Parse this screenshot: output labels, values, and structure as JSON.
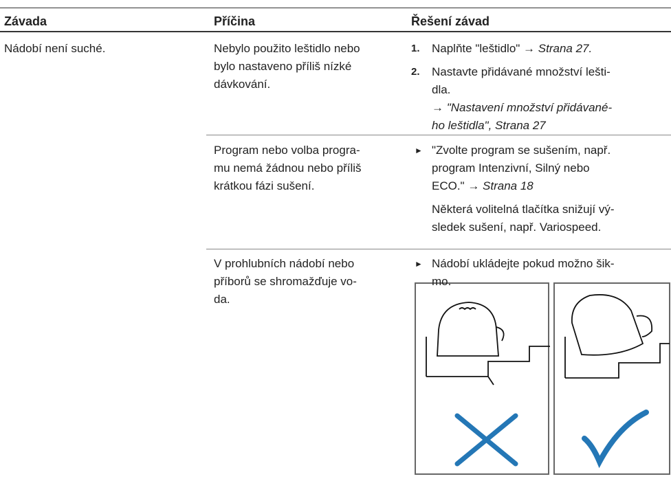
{
  "header": {
    "columns": [
      "Závada",
      "Příčina",
      "Řešení závad"
    ]
  },
  "rows": [
    {
      "fault": [
        "Nádobí není suché."
      ],
      "cause": [
        "Nebylo použito leštidlo nebo",
        "bylo nastaveno příliš nízké",
        "dávkování."
      ],
      "remedy": [
        {
          "number": "1.",
          "lines": [
            [
              {
                "text": "Naplňte \"leštidlo\" → "
              },
              {
                "text": "Strana 27.",
                "style": "italic"
              }
            ]
          ]
        },
        {
          "number": "2.",
          "lines": [
            [
              {
                "text": "Nastavte přidávané množství lešti-"
              }
            ],
            [
              {
                "text": "dla."
              }
            ],
            [
              {
                "text": "→ "
              },
              {
                "text": "\"Nastavení množství přidávané-",
                "style": "italic"
              }
            ],
            [
              {
                "text": "ho leštidla\", Strana 27",
                "style": "italic"
              }
            ]
          ]
        }
      ]
    },
    {
      "fault": [],
      "cause": [
        "Program nebo volba progra-",
        "mu nemá žádnou nebo příliš",
        "krátkou fázi sušení."
      ],
      "remedy": [
        {
          "lines": [
            [
              {
                "text": "\"Zvolte program se sušením, např."
              }
            ],
            [
              {
                "text": "program Intenzivní, Silný nebo"
              }
            ],
            [
              {
                "text": "ECO.\" → "
              },
              {
                "text": "Strana 18",
                "style": "italic"
              }
            ]
          ]
        },
        {
          "lines": [
            [
              {
                "text": "Některá volitelná tlačítka snižují vý-"
              }
            ],
            [
              {
                "text": "sledek sušení, např. Variospeed."
              }
            ]
          ]
        }
      ]
    },
    {
      "fault": [],
      "cause": [
        "V prohlubních nádobí nebo",
        "příborů se shromažďuje vo-",
        "da."
      ],
      "remedy": [
        {
          "lines": [
            [
              {
                "text": "Nádobí ukládejte pokud možno šik-"
              }
            ],
            [
              {
                "text": "mo."
              }
            ]
          ]
        }
      ]
    }
  ]
}
